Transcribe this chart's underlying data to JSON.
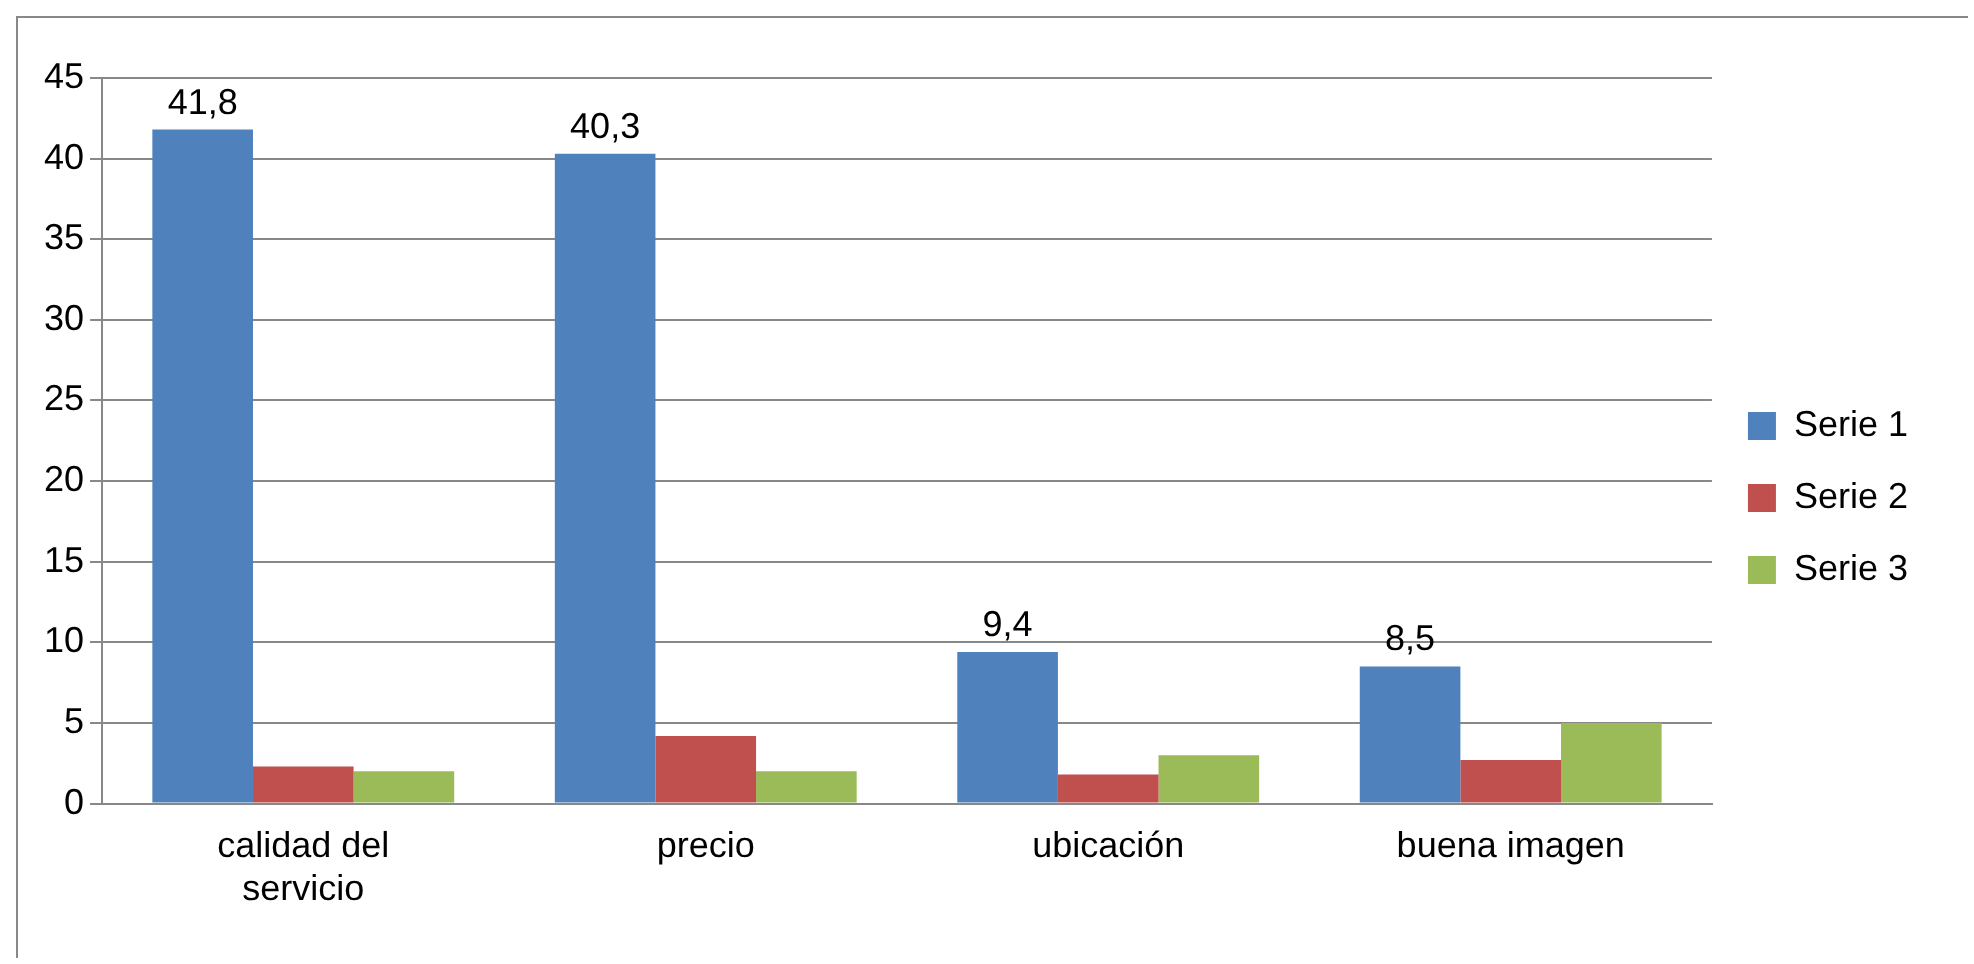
{
  "chart_data": {
    "type": "bar",
    "categories": [
      "calidad del servicio",
      "precio",
      "ubicación",
      "buena imagen"
    ],
    "series": [
      {
        "name": "Serie 1",
        "color": "#4f81bd",
        "values": [
          41.8,
          40.3,
          9.4,
          8.5
        ],
        "value_labels": [
          "41,8",
          "40,3",
          "9,4",
          "8,5"
        ]
      },
      {
        "name": "Serie 2",
        "color": "#c0504d",
        "values": [
          2.3,
          4.2,
          1.8,
          2.7
        ]
      },
      {
        "name": "Serie 3",
        "color": "#9bbb59",
        "values": [
          2,
          2,
          3,
          5
        ]
      }
    ],
    "ylim": [
      0,
      45
    ],
    "yticks": [
      0,
      5,
      10,
      15,
      20,
      25,
      30,
      35,
      40,
      45
    ],
    "grid": "y",
    "legend": "right"
  }
}
